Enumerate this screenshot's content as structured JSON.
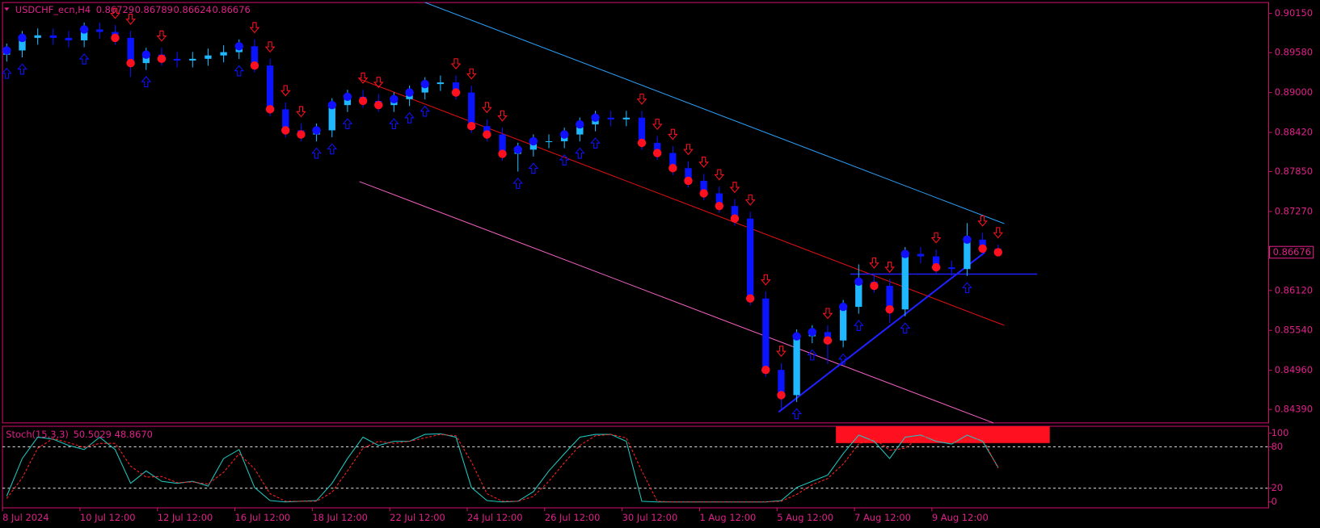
{
  "chart_data": {
    "type": "candlestick",
    "symbol": "USDCHF_ecn,H4",
    "up_color": "#1fb8ff",
    "down_color": "#0a14ff",
    "signal_up_color": "#1010ff",
    "signal_down_color": "#ff1020",
    "ylim": [
      0.84194,
      0.90309
    ],
    "yticks": [
      {
        "value": 0.9015,
        "label": "0.90150"
      },
      {
        "value": 0.8958,
        "label": "0.89580"
      },
      {
        "value": 0.89,
        "label": "0.89000"
      },
      {
        "value": 0.8842,
        "label": "0.88420"
      },
      {
        "value": 0.8785,
        "label": "0.87850"
      },
      {
        "value": 0.8727,
        "label": "0.87270"
      },
      {
        "value": 0.8612,
        "label": "0.86120"
      },
      {
        "value": 0.8554,
        "label": "0.85540"
      },
      {
        "value": 0.8496,
        "label": "0.84960"
      },
      {
        "value": 0.8439,
        "label": "0.84390"
      }
    ],
    "categories": [
      "8 Jul 2024",
      null,
      null,
      null,
      null,
      "10 Jul 12:00",
      null,
      null,
      null,
      null,
      "12 Jul 12:00",
      null,
      null,
      null,
      null,
      "16 Jul 12:00",
      null,
      null,
      null,
      null,
      "18 Jul 12:00",
      null,
      null,
      null,
      null,
      "22 Jul 12:00",
      null,
      null,
      null,
      null,
      "24 Jul 12:00",
      null,
      null,
      null,
      null,
      "26 Jul 12:00",
      null,
      null,
      null,
      null,
      "30 Jul 12:00",
      null,
      null,
      null,
      null,
      "1 Aug 12:00",
      null,
      null,
      null,
      null,
      "5 Aug 12:00",
      null,
      null,
      null,
      null,
      "7 Aug 12:00",
      null,
      null,
      null,
      null,
      "9 Aug 12:00",
      null,
      null,
      null,
      null
    ],
    "candles": [
      [
        0.8955,
        0.89712,
        0.8945,
        0.89612
      ],
      [
        0.89612,
        0.89895,
        0.89512,
        0.89795
      ],
      [
        0.89795,
        0.89932,
        0.89695,
        0.89832
      ],
      [
        0.89832,
        0.89932,
        0.89695,
        0.89795
      ],
      [
        0.89795,
        0.89895,
        0.89659,
        0.89759
      ],
      [
        0.89759,
        0.90018,
        0.89659,
        0.89918
      ],
      [
        0.89918,
        0.90018,
        0.89781,
        0.89881
      ],
      [
        0.89881,
        0.89981,
        0.89695,
        0.89795
      ],
      [
        0.89795,
        0.89895,
        0.89228,
        0.89428
      ],
      [
        0.89428,
        0.89651,
        0.89328,
        0.89551
      ],
      [
        0.89551,
        0.89651,
        0.8939,
        0.8949
      ],
      [
        0.8949,
        0.8959,
        0.89365,
        0.89465
      ],
      [
        0.89465,
        0.8959,
        0.89365,
        0.8949
      ],
      [
        0.8949,
        0.89639,
        0.8939,
        0.89539
      ],
      [
        0.89539,
        0.89687,
        0.89439,
        0.89587
      ],
      [
        0.89587,
        0.89773,
        0.89487,
        0.89673
      ],
      [
        0.89673,
        0.89773,
        0.89292,
        0.89392
      ],
      [
        0.89392,
        0.89492,
        0.88656,
        0.88756
      ],
      [
        0.88756,
        0.88856,
        0.8835,
        0.8845
      ],
      [
        0.8845,
        0.8855,
        0.88289,
        0.88389
      ],
      [
        0.88389,
        0.8855,
        0.88289,
        0.8845
      ],
      [
        0.8845,
        0.88917,
        0.8835,
        0.88817
      ],
      [
        0.88817,
        0.89039,
        0.88717,
        0.88939
      ],
      [
        0.88939,
        0.89039,
        0.88778,
        0.88878
      ],
      [
        0.88878,
        0.88978,
        0.88717,
        0.88817
      ],
      [
        0.88817,
        0.89003,
        0.88717,
        0.88903
      ],
      [
        0.88903,
        0.891,
        0.88803,
        0.89
      ],
      [
        0.89,
        0.89223,
        0.889,
        0.89123
      ],
      [
        0.89123,
        0.89247,
        0.89023,
        0.89147
      ],
      [
        0.89147,
        0.89247,
        0.889,
        0.89
      ],
      [
        0.89,
        0.891,
        0.88411,
        0.88511
      ],
      [
        0.88511,
        0.88611,
        0.88289,
        0.88389
      ],
      [
        0.88389,
        0.88489,
        0.88008,
        0.88108
      ],
      [
        0.88108,
        0.88269,
        0.8785,
        0.88169
      ],
      [
        0.88169,
        0.88391,
        0.88069,
        0.88291
      ],
      [
        0.88291,
        0.88391,
        0.88191,
        0.88291
      ],
      [
        0.88291,
        0.88489,
        0.88191,
        0.88389
      ],
      [
        0.88389,
        0.88636,
        0.88289,
        0.88536
      ],
      [
        0.88536,
        0.88734,
        0.88436,
        0.88634
      ],
      [
        0.88634,
        0.88734,
        0.88509,
        0.88609
      ],
      [
        0.88609,
        0.88734,
        0.88509,
        0.88634
      ],
      [
        0.88634,
        0.88734,
        0.88167,
        0.88267
      ],
      [
        0.88267,
        0.88367,
        0.8802,
        0.8812
      ],
      [
        0.8812,
        0.8822,
        0.878,
        0.879
      ],
      [
        0.879,
        0.88,
        0.87616,
        0.87716
      ],
      [
        0.87716,
        0.87816,
        0.87433,
        0.87533
      ],
      [
        0.87533,
        0.87633,
        0.87249,
        0.87349
      ],
      [
        0.87349,
        0.87449,
        0.87066,
        0.87166
      ],
      [
        0.87166,
        0.87266,
        0.85904,
        0.86004
      ],
      [
        0.86004,
        0.86104,
        0.84865,
        0.84965
      ],
      [
        0.84965,
        0.85065,
        0.84398,
        0.84598
      ],
      [
        0.84598,
        0.85554,
        0.84498,
        0.85454
      ],
      [
        0.85454,
        0.85615,
        0.85354,
        0.85515
      ],
      [
        0.85515,
        0.85615,
        0.8505,
        0.85393
      ],
      [
        0.85393,
        0.85982,
        0.85293,
        0.85882
      ],
      [
        0.85882,
        0.865,
        0.85782,
        0.86249
      ],
      [
        0.86249,
        0.86349,
        0.86088,
        0.86188
      ],
      [
        0.86188,
        0.86288,
        0.8565,
        0.85845
      ],
      [
        0.85845,
        0.86752,
        0.85745,
        0.86652
      ],
      [
        0.86652,
        0.86752,
        0.86516,
        0.86616
      ],
      [
        0.86616,
        0.86716,
        0.86357,
        0.86457
      ],
      [
        0.86457,
        0.86557,
        0.86332,
        0.86432
      ],
      [
        0.86432,
        0.871,
        0.86332,
        0.8686
      ],
      [
        0.8686,
        0.8696,
        0.86629,
        0.86729
      ],
      [
        0.86729,
        0.86789,
        0.86624,
        0.86676
      ]
    ],
    "stochastic": {
      "title": "Stoch(15,3,3)",
      "ylim": [
        -8.5,
        109.8
      ],
      "yticks": [
        100,
        80,
        20,
        0
      ],
      "levels": [
        80,
        20
      ],
      "series": [
        {
          "name": "%K",
          "color": "#20c8c0",
          "last_label": "50.5029",
          "values": [
            8.5,
            63,
            94,
            91,
            82,
            76,
            94,
            76,
            27,
            45,
            30,
            27,
            30,
            23,
            63,
            76,
            21,
            2,
            0,
            1,
            2,
            27,
            63,
            94,
            82,
            88,
            88,
            98,
            99,
            94,
            21,
            2,
            0,
            1,
            15,
            45,
            70,
            94,
            98,
            98,
            88,
            1,
            0,
            0,
            0,
            0,
            0,
            0,
            0,
            0,
            2,
            21,
            30,
            39,
            70,
            97,
            88,
            63,
            94,
            97,
            88,
            84,
            97,
            88,
            50.5029
          ]
        },
        {
          "name": "%D",
          "color": "#ff2020",
          "last_label": "48.8670",
          "values": [
            5,
            35,
            78,
            92,
            86,
            79,
            85,
            85,
            52,
            36,
            37,
            28,
            29,
            26,
            43,
            70,
            48,
            12,
            1,
            1,
            1,
            14,
            45,
            78,
            88,
            85,
            88,
            93,
            98,
            96,
            58,
            12,
            1,
            1,
            8,
            30,
            57,
            82,
            96,
            98,
            93,
            45,
            1,
            0,
            0,
            0,
            0,
            0,
            0,
            0,
            1,
            11,
            25,
            34,
            55,
            84,
            92,
            75,
            78,
            95,
            92,
            86,
            90,
            92,
            48.867
          ]
        }
      ]
    }
  }
}
